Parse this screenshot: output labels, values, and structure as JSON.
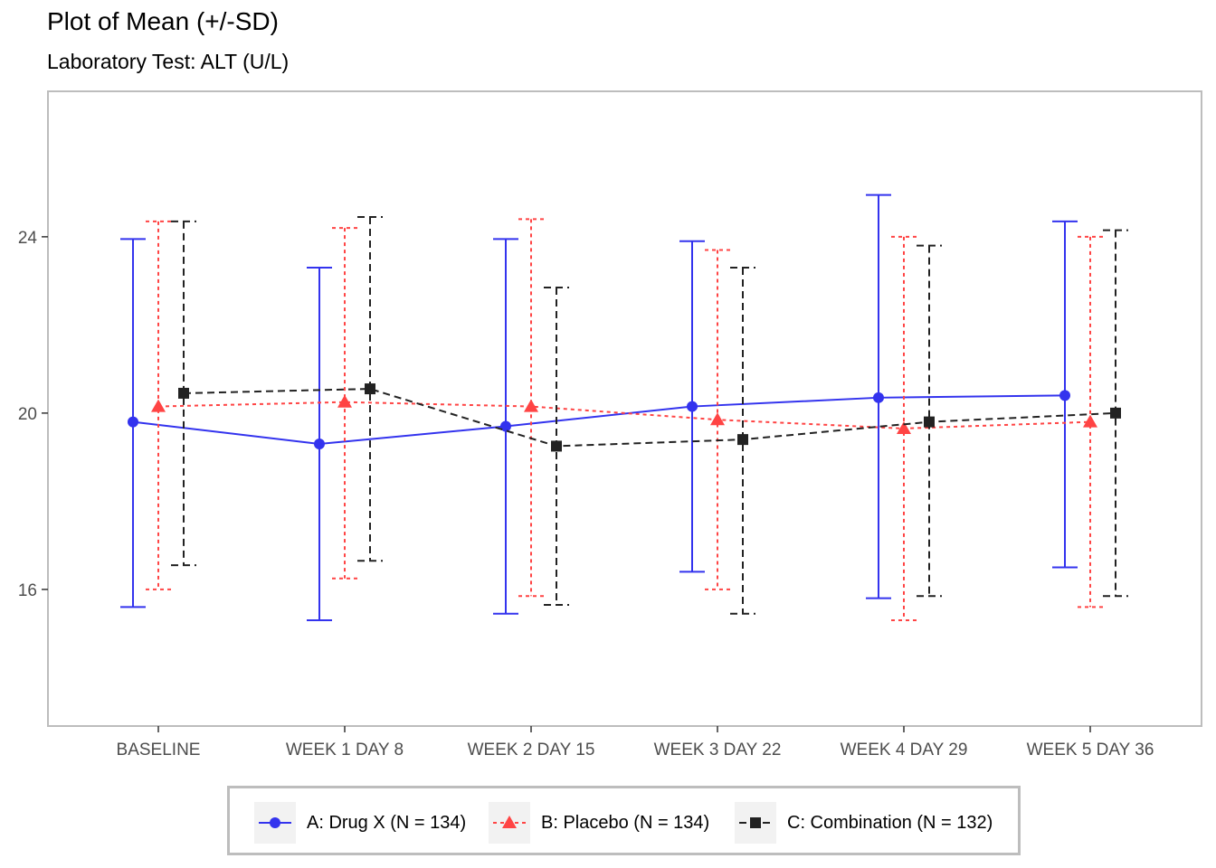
{
  "chart_data": {
    "type": "line",
    "title": "Plot of Mean (+/-SD)",
    "subtitle": "Laboratory Test: ALT (U/L)",
    "xlabel": "",
    "ylabel": "",
    "categories": [
      "BASELINE",
      "WEEK 1 DAY 8",
      "WEEK 2 DAY 15",
      "WEEK 3 DAY 22",
      "WEEK 4 DAY 29",
      "WEEK 5 DAY 36"
    ],
    "ylim": [
      12.9,
      27.3
    ],
    "yticks": [
      16,
      20,
      24
    ],
    "grid": false,
    "legend_position": "bottom",
    "series": [
      {
        "name": "A: Drug X (N = 134)",
        "color": "#3333ee",
        "marker": "circle",
        "linestyle": "solid",
        "mean": [
          19.8,
          19.3,
          19.7,
          20.15,
          20.35,
          20.4
        ],
        "lower": [
          15.6,
          15.3,
          15.45,
          16.4,
          15.8,
          16.5
        ],
        "upper": [
          23.95,
          23.3,
          23.95,
          23.9,
          24.95,
          24.35
        ]
      },
      {
        "name": "B: Placebo (N = 134)",
        "color": "#ff4444",
        "marker": "triangle",
        "linestyle": "dotted",
        "mean": [
          20.15,
          20.25,
          20.15,
          19.85,
          19.65,
          19.8
        ],
        "lower": [
          16.0,
          16.25,
          15.85,
          16.0,
          15.3,
          15.6
        ],
        "upper": [
          24.35,
          24.2,
          24.4,
          23.7,
          24.0,
          24.0
        ]
      },
      {
        "name": "C: Combination (N = 132)",
        "color": "#222222",
        "marker": "square",
        "linestyle": "dashed",
        "mean": [
          20.45,
          20.55,
          19.25,
          19.4,
          19.8,
          20.0
        ],
        "lower": [
          16.55,
          16.65,
          15.65,
          15.45,
          15.85,
          15.85
        ],
        "upper": [
          24.35,
          24.45,
          22.85,
          23.3,
          23.8,
          24.15
        ]
      }
    ]
  }
}
